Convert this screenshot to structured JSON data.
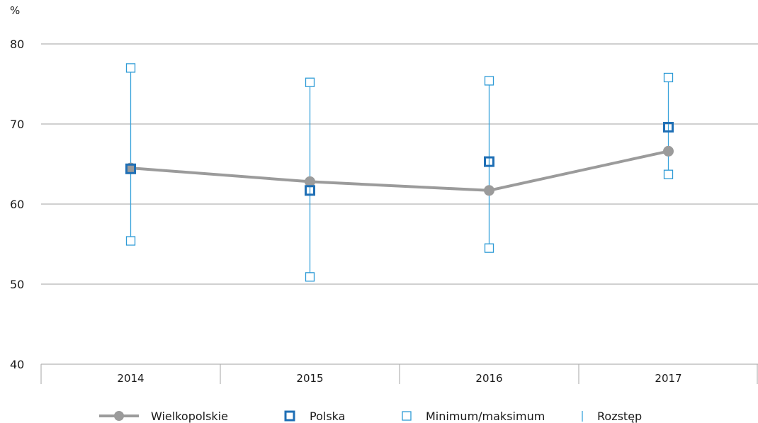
{
  "chart_data": {
    "type": "line",
    "unit_label": "%",
    "categories": [
      "2014",
      "2015",
      "2016",
      "2017"
    ],
    "ylim": [
      40,
      80
    ],
    "yticks": [
      40,
      50,
      60,
      70,
      80
    ],
    "grid": true,
    "legend_position": "bottom",
    "series": [
      {
        "name": "Wielkopolskie",
        "values": [
          64.5,
          62.8,
          61.7,
          66.6
        ]
      },
      {
        "name": "Polska",
        "values": [
          64.4,
          61.7,
          65.3,
          69.6
        ]
      },
      {
        "name": "Minimum/maksimum",
        "min": [
          55.4,
          50.9,
          54.5,
          63.7
        ],
        "max": [
          77.0,
          75.2,
          75.4,
          75.8
        ]
      }
    ],
    "range_label": "Rozstęp",
    "colors": {
      "wielkopolskie": "#9b9b9b",
      "polska": "#1f6fb5",
      "minmax": "#2e9bd6",
      "range": "#3aa3db",
      "grid": "#b3b3b3"
    }
  }
}
